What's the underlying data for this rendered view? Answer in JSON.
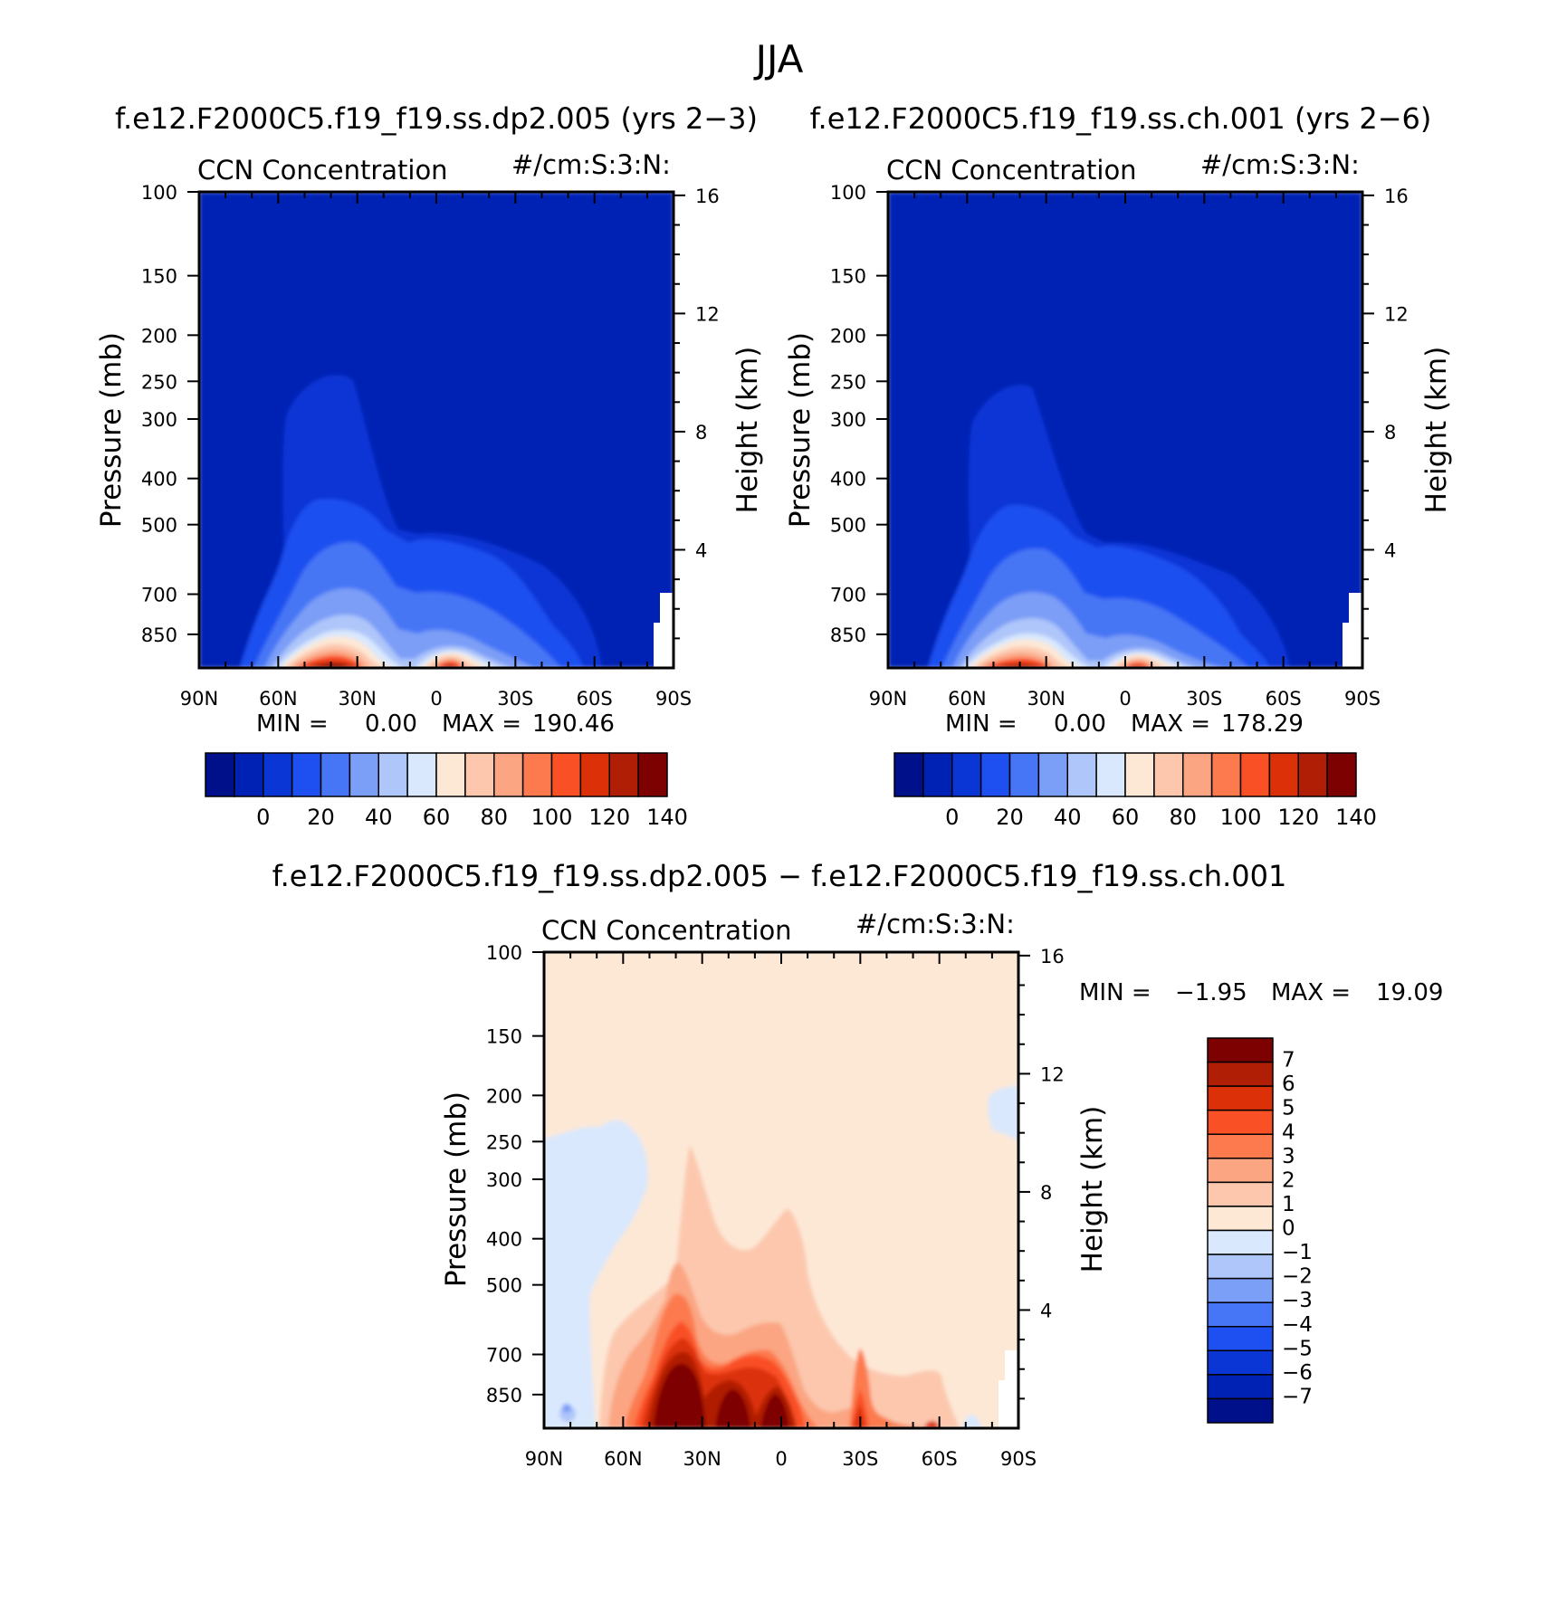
{
  "figure_title": "JJA",
  "panels": [
    {
      "id": "top-left",
      "case_title": "f.e12.F2000C5.f19_f19.ss.dp2.005 (yrs 2−3)",
      "field_label": "CCN Concentration",
      "units_label": "#/cm:S:3:N:",
      "left_axis_label": "Pressure (mb)",
      "right_axis_label": "Height (km)",
      "min_label": "MIN =",
      "min_value": "0.00",
      "max_label": "MAX =",
      "max_value": "190.46"
    },
    {
      "id": "top-right",
      "case_title": "f.e12.F2000C5.f19_f19.ss.ch.001 (yrs 2−6)",
      "field_label": "CCN Concentration",
      "units_label": "#/cm:S:3:N:",
      "left_axis_label": "Pressure (mb)",
      "right_axis_label": "Height (km)",
      "min_label": "MIN =",
      "min_value": "0.00",
      "max_label": "MAX =",
      "max_value": "178.29"
    },
    {
      "id": "bottom",
      "case_title": "f.e12.F2000C5.f19_f19.ss.dp2.005 − f.e12.F2000C5.f19_f19.ss.ch.001",
      "field_label": "CCN Concentration",
      "units_label": "#/cm:S:3:N:",
      "left_axis_label": "Pressure (mb)",
      "right_axis_label": "Height (km)",
      "min_label": "MIN =",
      "min_value": "−1.95",
      "max_label": "MAX =",
      "max_value": "19.09"
    }
  ],
  "colors": {
    "abs_scale": [
      "#000f8a",
      "#0022b4",
      "#0a36d6",
      "#1e4ff0",
      "#4676f5",
      "#7b9ef7",
      "#afc6fa",
      "#d9e8fd",
      "#fde8d6",
      "#fcc7ad",
      "#fba582",
      "#fc7a4d",
      "#fa5025",
      "#db3008",
      "#b01e05",
      "#7e0101"
    ],
    "diff_scale": [
      "#7e0101",
      "#b01e05",
      "#db3008",
      "#fa5025",
      "#fc7a4d",
      "#fba582",
      "#fcc7ad",
      "#fde8d6",
      "#d9e8fd",
      "#afc6fa",
      "#7b9ef7",
      "#4676f5",
      "#1e4ff0",
      "#0a36d6",
      "#0022b4",
      "#000f8a"
    ]
  },
  "chart_data": [
    {
      "type": "heatmap",
      "panel": "top-left",
      "title": "CCN Concentration",
      "xlabel": "",
      "ylabel": "Pressure (mb)",
      "y2label": "Height (km)",
      "x_ticks": [
        "90N",
        "60N",
        "30N",
        "0",
        "30S",
        "60S",
        "90S"
      ],
      "x_range": [
        90,
        -90
      ],
      "y_ticks": [
        100,
        150,
        200,
        250,
        300,
        400,
        500,
        700,
        850
      ],
      "y_range": [
        100,
        1000
      ],
      "y_scale": "log",
      "y2_ticks": [
        4,
        8,
        12,
        16
      ],
      "colorbar_ticks": [
        0,
        20,
        40,
        60,
        80,
        100,
        120,
        140
      ],
      "colorbar_levels": [
        -10,
        0,
        10,
        20,
        30,
        40,
        50,
        60,
        70,
        80,
        90,
        100,
        110,
        120,
        130,
        140
      ],
      "min": 0.0,
      "max": 190.46
    },
    {
      "type": "heatmap",
      "panel": "top-right",
      "title": "CCN Concentration",
      "xlabel": "",
      "ylabel": "Pressure (mb)",
      "y2label": "Height (km)",
      "x_ticks": [
        "90N",
        "60N",
        "30N",
        "0",
        "30S",
        "60S",
        "90S"
      ],
      "x_range": [
        90,
        -90
      ],
      "y_ticks": [
        100,
        150,
        200,
        250,
        300,
        400,
        500,
        700,
        850
      ],
      "y_range": [
        100,
        1000
      ],
      "y_scale": "log",
      "y2_ticks": [
        4,
        8,
        12,
        16
      ],
      "colorbar_ticks": [
        0,
        20,
        40,
        60,
        80,
        100,
        120,
        140
      ],
      "colorbar_levels": [
        -10,
        0,
        10,
        20,
        30,
        40,
        50,
        60,
        70,
        80,
        90,
        100,
        110,
        120,
        130,
        140
      ],
      "min": 0.0,
      "max": 178.29
    },
    {
      "type": "heatmap",
      "panel": "bottom",
      "title": "CCN Concentration",
      "xlabel": "",
      "ylabel": "Pressure (mb)",
      "y2label": "Height (km)",
      "x_ticks": [
        "90N",
        "60N",
        "30N",
        "0",
        "30S",
        "60S",
        "90S"
      ],
      "x_range": [
        90,
        -90
      ],
      "y_ticks": [
        100,
        150,
        200,
        250,
        300,
        400,
        500,
        700,
        850
      ],
      "y_range": [
        100,
        1000
      ],
      "y_scale": "log",
      "y2_ticks": [
        4,
        8,
        12,
        16
      ],
      "colorbar_ticks": [
        "7",
        "6",
        "5",
        "4",
        "3",
        "2",
        "1",
        "0",
        "−1",
        "−2",
        "−3",
        "−4",
        "−5",
        "−6",
        "−7"
      ],
      "colorbar_levels": [
        -7,
        -6,
        -5,
        -4,
        -3,
        -2,
        -1,
        0,
        1,
        2,
        3,
        4,
        5,
        6,
        7
      ],
      "min": -1.95,
      "max": 19.09
    }
  ]
}
